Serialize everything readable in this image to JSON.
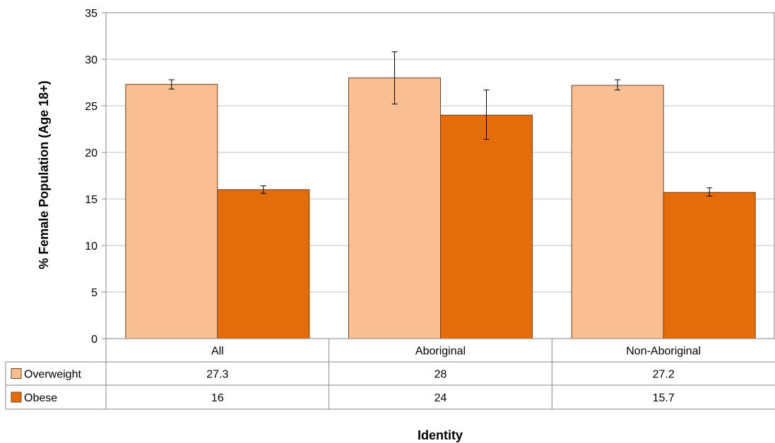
{
  "chart_data": {
    "type": "bar",
    "categories": [
      "All",
      "Aboriginal",
      "Non-Aboriginal"
    ],
    "series": [
      {
        "name": "Overweight",
        "values": [
          27.3,
          28,
          27.2
        ],
        "error_low": [
          26.8,
          25.2,
          26.7
        ],
        "error_high": [
          27.8,
          30.8,
          27.8
        ],
        "color": "#f9bf92"
      },
      {
        "name": "Obese",
        "values": [
          16,
          24,
          15.7
        ],
        "error_low": [
          15.6,
          21.4,
          15.3
        ],
        "error_high": [
          16.4,
          26.7,
          16.2
        ],
        "color": "#e46c0a"
      }
    ],
    "table": [
      {
        "series": "Overweight",
        "cells": [
          "27.3",
          "28",
          "27.2"
        ]
      },
      {
        "series": "Obese",
        "cells": [
          "16",
          "24",
          "15.7"
        ]
      }
    ],
    "ylabel": "% Female Population (Age 18+)",
    "xlabel": "Identity",
    "ylim": [
      0,
      35
    ],
    "yticks": [
      0,
      5,
      10,
      15,
      20,
      25,
      30,
      35
    ],
    "grid": true,
    "legend": "data-table"
  }
}
